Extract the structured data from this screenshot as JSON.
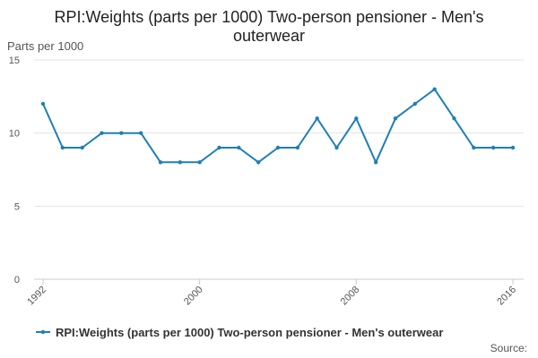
{
  "chart_data": {
    "type": "line",
    "title_line1": "RPI:Weights (parts per 1000) Two-person pensioner - Men's",
    "title_line2": "outerwear",
    "ylabel": "Parts per 1000",
    "ylim": [
      0,
      15
    ],
    "yticks": [
      "0",
      "5",
      "10",
      "15"
    ],
    "xlim": [
      1992,
      2016
    ],
    "xticks": [
      "1992",
      "2000",
      "2008",
      "2016"
    ],
    "grid": "horizontal",
    "legend_position": "bottom",
    "series": [
      {
        "name": "RPI:Weights (parts per 1000) Two-person pensioner - Men's outerwear",
        "color": "#1f7fb6",
        "x": [
          1992,
          1993,
          1994,
          1995,
          1996,
          1997,
          1998,
          1999,
          2000,
          2001,
          2002,
          2003,
          2004,
          2005,
          2006,
          2007,
          2008,
          2009,
          2010,
          2011,
          2012,
          2013,
          2014,
          2015,
          2016
        ],
        "y": [
          12,
          9,
          9,
          10,
          10,
          10,
          8,
          8,
          8,
          9,
          9,
          8,
          9,
          9,
          11,
          9,
          11,
          8,
          11,
          12,
          13,
          11,
          9,
          9,
          9
        ]
      }
    ],
    "source": "Source:"
  }
}
